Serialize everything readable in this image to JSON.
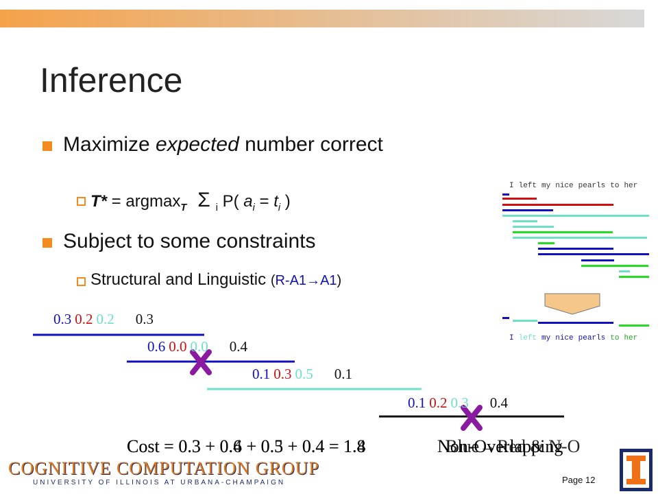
{
  "title": "Inference",
  "bullets": [
    {
      "pre": "Maximize ",
      "em": "expected",
      "post": " number correct"
    },
    {
      "text": "Subject to some constraints"
    }
  ],
  "formula": {
    "lhs": "T*",
    "op": " = argmax",
    "sub": "T",
    "sum": "Σ",
    "index": "i",
    "body": "P(",
    "a": "a",
    "a_sub": "i",
    "eq": "=",
    "t": "t",
    "t_sub": "i",
    "close": ")"
  },
  "constraint": {
    "text": "Structural and Linguistic",
    "open": "(",
    "from": "R-A1",
    "arrow": "→",
    "to": "A1",
    "close": ")"
  },
  "rows": [
    [
      "0.3",
      "0.2",
      "0.2",
      "0.3"
    ],
    [
      "0.6",
      "0.0",
      "0.0",
      "0.4"
    ],
    [
      "0.1",
      "0.3",
      "0.5",
      "0.1"
    ],
    [
      "0.1",
      "0.2",
      "0.3",
      "0.4"
    ]
  ],
  "costs": [
    "Cost = 0.3 + 0.6 + 0.5 + 0.4 = 1.8",
    "Cost = 0.3 + 0.4 + 0.3 + 0.4 = 1.4"
  ],
  "notes": [
    "Non-Overlapping",
    "Blue→Red & N-O"
  ],
  "sentence": [
    "I",
    "left",
    "my",
    "nice",
    "pearls",
    "to",
    "her"
  ],
  "footer": {
    "group": "COGNITIVE COMPUTATION GROUP",
    "university": "UNIVERSITY OF ILLINOIS AT URBANA-CHAMPAIGN",
    "page": "Page 12"
  }
}
